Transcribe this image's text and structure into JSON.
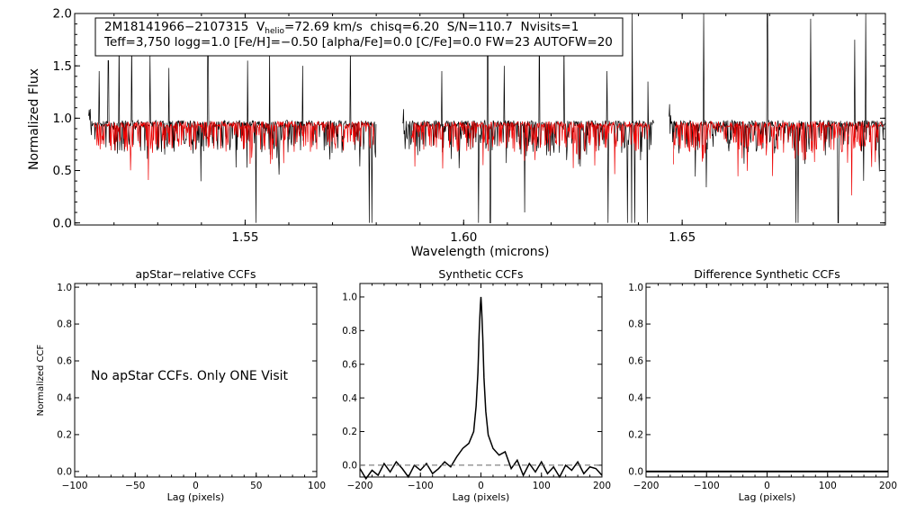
{
  "chart_data": [
    {
      "type": "line",
      "id": "spectrum",
      "title": "",
      "xlabel": "Wavelength (microns)",
      "ylabel": "Normalized Flux",
      "xlim": [
        1.511,
        1.6965
      ],
      "ylim": [
        -0.02,
        2.0
      ],
      "xticks": [
        1.55,
        1.6,
        1.65
      ],
      "xtick_labels": [
        "1.55",
        "1.60",
        "1.65"
      ],
      "yticks": [
        0.0,
        0.5,
        1.0,
        1.5,
        2.0
      ],
      "ytick_labels": [
        "0.0",
        "0.5",
        "1.0",
        "1.5",
        "2.0"
      ],
      "colors": {
        "observed": "#000000",
        "model": "#ee0000"
      },
      "chips": [
        [
          1.5142,
          1.58
        ],
        [
          1.586,
          1.6435
        ],
        [
          1.647,
          1.6965
        ]
      ],
      "model_chips": [
        [
          1.5155,
          1.5795
        ],
        [
          1.588,
          1.6425
        ],
        [
          1.648,
          1.696
        ]
      ],
      "series": [
        {
          "name": "observed",
          "baseline": 0.95
        },
        {
          "name": "model",
          "baseline": 0.94
        }
      ],
      "emission_spikes": [
        1.5166,
        1.5187,
        1.5212,
        1.524,
        1.5282,
        1.5326,
        1.5415,
        1.5506,
        1.5556,
        1.5632,
        1.5741,
        1.595,
        1.6055,
        1.6093,
        1.6173,
        1.623,
        1.6328,
        1.6385,
        1.6422,
        1.6549,
        1.6695,
        1.6794,
        1.6895,
        1.692
      ],
      "emission_heights": [
        1.45,
        1.55,
        1.8,
        1.75,
        1.6,
        1.48,
        1.75,
        1.55,
        1.65,
        1.5,
        1.7,
        1.45,
        1.75,
        1.5,
        2.0,
        1.75,
        1.45,
        2.0,
        1.35,
        2.0,
        2.0,
        1.95,
        1.75,
        2.0
      ],
      "absorption_dips": [
        1.5135,
        1.5142,
        1.5525,
        1.5784,
        1.579,
        1.6034,
        1.6061,
        1.614,
        1.633,
        1.6375,
        1.6384,
        1.6392,
        1.642,
        1.676,
        1.6765,
        1.6857
      ],
      "dip_depths": [
        0.6,
        0.0,
        0.0,
        0.0,
        0.0,
        0.0,
        0.0,
        0.1,
        0.0,
        0.0,
        0.0,
        0.0,
        0.0,
        0.0,
        0.0,
        0.0
      ],
      "annotation": {
        "line1": {
          "star_id": "2M18141966−2107315",
          "v_label": "V",
          "v_sub": "helio",
          "v_value": "=72.69 km/s",
          "chisq": "chisq=6.20",
          "sn": "S/N=110.7",
          "nvisits": "Nvisits=1"
        },
        "line2": "Teff=3,750 logg=1.0 [Fe/H]=−0.50 [alpha/Fe]=0.0 [C/Fe]=0.0 FW=23 AUTOFW=20"
      }
    },
    {
      "type": "line",
      "id": "apstar",
      "title": "apStar−relative CCFs",
      "xlabel": "Lag (pixels)",
      "ylabel": "Normalized CCF",
      "xlim": [
        -100,
        100
      ],
      "ylim": [
        -0.03,
        1.02
      ],
      "xticks": [
        -100,
        -50,
        0,
        50,
        100
      ],
      "xtick_labels": [
        "−100",
        "−50",
        "0",
        "50",
        "100"
      ],
      "yticks": [
        0.0,
        0.2,
        0.4,
        0.6,
        0.8,
        1.0
      ],
      "ytick_labels": [
        "0.0",
        "0.2",
        "0.4",
        "0.6",
        "0.8",
        "1.0"
      ],
      "message": "No apStar CCFs.  Only ONE Visit",
      "series": []
    },
    {
      "type": "line",
      "id": "synthetic",
      "title": "Synthetic CCFs",
      "xlabel": "Lag (pixels)",
      "ylabel": "",
      "xlim": [
        -200,
        200
      ],
      "ylim": [
        -0.07,
        1.08
      ],
      "xticks": [
        -200,
        -100,
        0,
        100,
        200
      ],
      "xtick_labels": [
        "−200",
        "−100",
        "0",
        "100",
        "200"
      ],
      "yticks": [
        0.0,
        0.2,
        0.4,
        0.6,
        0.8,
        1.0
      ],
      "ytick_labels": [
        "0.0",
        "0.2",
        "0.4",
        "0.6",
        "0.8",
        "1.0"
      ],
      "series": [
        {
          "name": "ccf",
          "x": [
            -200,
            -190,
            -180,
            -170,
            -160,
            -150,
            -140,
            -130,
            -120,
            -110,
            -100,
            -90,
            -80,
            -70,
            -60,
            -50,
            -40,
            -30,
            -20,
            -12,
            -8,
            -5,
            -3,
            -1,
            0,
            1,
            3,
            5,
            8,
            12,
            20,
            30,
            40,
            50,
            60,
            70,
            80,
            90,
            100,
            110,
            120,
            130,
            140,
            150,
            160,
            170,
            180,
            190,
            200
          ],
          "y": [
            -0.02,
            -0.08,
            -0.03,
            -0.06,
            0.01,
            -0.04,
            0.02,
            -0.02,
            -0.07,
            0.0,
            -0.03,
            0.01,
            -0.05,
            -0.02,
            0.02,
            -0.01,
            0.05,
            0.1,
            0.13,
            0.2,
            0.35,
            0.55,
            0.78,
            0.95,
            1.0,
            0.94,
            0.76,
            0.52,
            0.32,
            0.18,
            0.1,
            0.06,
            0.08,
            -0.02,
            0.03,
            -0.06,
            0.01,
            -0.04,
            0.02,
            -0.05,
            -0.01,
            -0.07,
            0.0,
            -0.03,
            0.02,
            -0.05,
            -0.01,
            -0.02,
            -0.06
          ]
        },
        {
          "name": "zero-line",
          "x": [
            -200,
            200
          ],
          "y": [
            0.0,
            0.0
          ],
          "style": "dashed"
        }
      ]
    },
    {
      "type": "line",
      "id": "difference",
      "title": "Difference Synthetic CCFs",
      "xlabel": "Lag (pixels)",
      "ylabel": "",
      "xlim": [
        -200,
        200
      ],
      "ylim": [
        -0.03,
        1.02
      ],
      "xticks": [
        -200,
        -100,
        0,
        100,
        200
      ],
      "xtick_labels": [
        "−200",
        "−100",
        "0",
        "100",
        "200"
      ],
      "yticks": [
        0.0,
        0.2,
        0.4,
        0.6,
        0.8,
        1.0
      ],
      "ytick_labels": [
        "0.0",
        "0.2",
        "0.4",
        "0.6",
        "0.8",
        "1.0"
      ],
      "series": [
        {
          "name": "difference",
          "x": [
            -200,
            200
          ],
          "y": [
            0.0,
            0.0
          ]
        }
      ]
    }
  ]
}
